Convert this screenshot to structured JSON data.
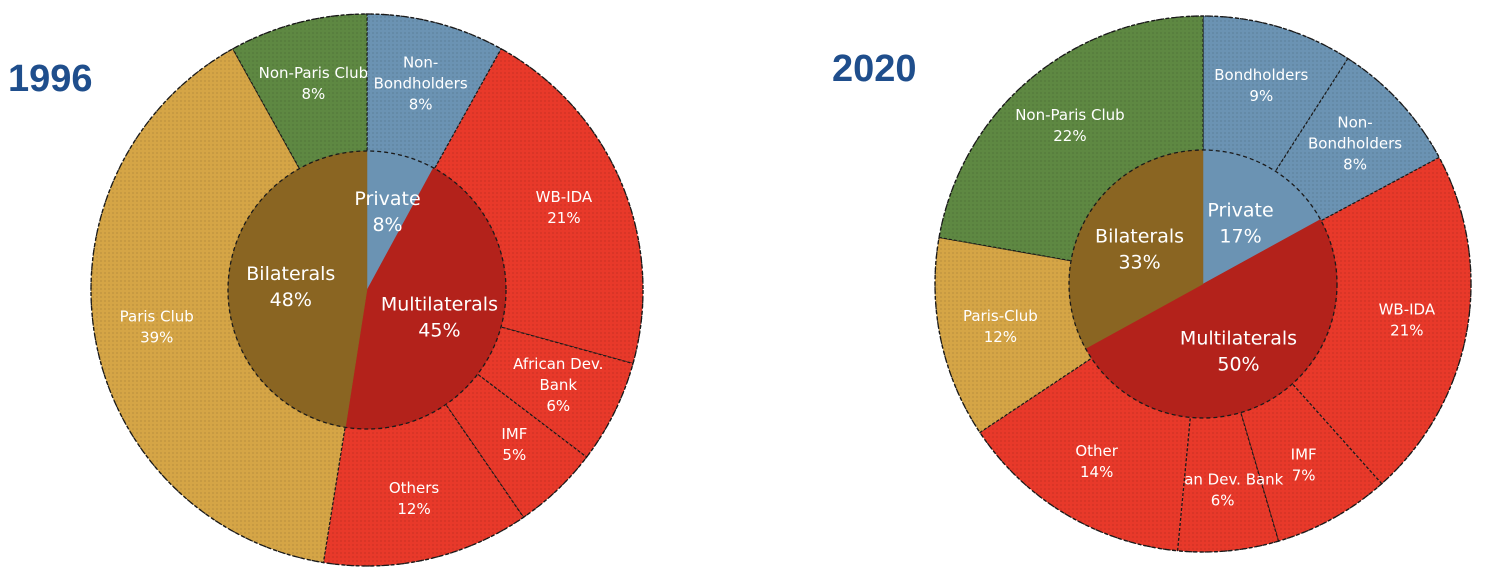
{
  "chart_data": [
    {
      "type": "pie",
      "title": "1996",
      "inner": [
        {
          "name": "Private",
          "value": 8,
          "label": "8%",
          "color": "#6b93b3"
        },
        {
          "name": "Multilaterals",
          "value": 45,
          "label": "45%",
          "color": "#b3221b"
        },
        {
          "name": "Bilaterals",
          "value": 48,
          "label": "48%",
          "color": "#8a6522"
        }
      ],
      "outer": [
        {
          "name": "Non-Bondholders",
          "lines": [
            "Non-",
            "Bondholders",
            "8%"
          ],
          "value": 8,
          "group": "Private",
          "color": "#6b93b3"
        },
        {
          "name": "WB-IDA",
          "lines": [
            "WB-IDA",
            "21%"
          ],
          "value": 21,
          "group": "Multilaterals",
          "color": "#e8392a"
        },
        {
          "name": "African Dev. Bank",
          "lines": [
            "African Dev.",
            "Bank",
            "6%"
          ],
          "value": 6,
          "group": "Multilaterals",
          "color": "#e8392a"
        },
        {
          "name": "IMF",
          "lines": [
            "IMF",
            "5%"
          ],
          "value": 5,
          "group": "Multilaterals",
          "color": "#e8392a"
        },
        {
          "name": "Others",
          "lines": [
            "Others",
            "12%"
          ],
          "value": 12,
          "group": "Multilaterals",
          "color": "#e8392a"
        },
        {
          "name": "Paris Club",
          "lines": [
            "Paris Club",
            "39%"
          ],
          "value": 39,
          "group": "Bilaterals",
          "color": "#d5a546"
        },
        {
          "name": "Non-Paris Club",
          "lines": [
            "Non-Paris Club",
            "8%"
          ],
          "value": 8,
          "group": "Bilaterals",
          "color": "#5e8842"
        }
      ]
    },
    {
      "type": "pie",
      "title": "2020",
      "inner": [
        {
          "name": "Private",
          "value": 17,
          "label": "17%",
          "color": "#6b93b3"
        },
        {
          "name": "Multilaterals",
          "value": 50,
          "label": "50%",
          "color": "#b3221b"
        },
        {
          "name": "Bilaterals",
          "value": 33,
          "label": "33%",
          "color": "#8a6522"
        }
      ],
      "outer": [
        {
          "name": "Bondholders",
          "lines": [
            "Bondholders",
            "9%"
          ],
          "value": 9,
          "group": "Private",
          "color": "#6b93b3"
        },
        {
          "name": "Non-Bondholders",
          "lines": [
            "Non-",
            "Bondholders",
            "8%"
          ],
          "value": 8,
          "group": "Private",
          "color": "#6b93b3"
        },
        {
          "name": "WB-IDA",
          "lines": [
            "WB-IDA",
            "21%"
          ],
          "value": 21,
          "group": "Multilaterals",
          "color": "#e8392a"
        },
        {
          "name": "IMF",
          "lines": [
            "IMF",
            "7%"
          ],
          "value": 7,
          "group": "Multilaterals",
          "color": "#e8392a"
        },
        {
          "name": "Asian Dev. Bank",
          "lines": [
            "Asian Dev. Bank",
            "6%"
          ],
          "value": 6,
          "group": "Multilaterals",
          "color": "#e8392a"
        },
        {
          "name": "Other",
          "lines": [
            "Other",
            "14%"
          ],
          "value": 14,
          "group": "Multilaterals",
          "color": "#e8392a"
        },
        {
          "name": "Paris-Club",
          "lines": [
            "Paris-Club",
            "12%"
          ],
          "value": 12,
          "group": "Bilaterals",
          "color": "#d5a546"
        },
        {
          "name": "Non-Paris Club",
          "lines": [
            "Non-Paris Club",
            "22%"
          ],
          "value": 22,
          "group": "Bilaterals",
          "color": "#5e8842"
        }
      ]
    }
  ]
}
